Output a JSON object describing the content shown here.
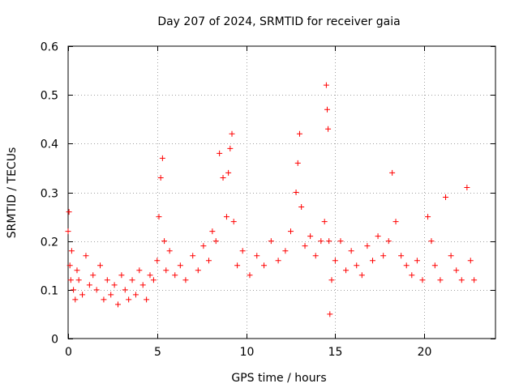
{
  "chart_data": {
    "type": "scatter",
    "title": "Day 207 of 2024, SRMTID for receiver gaia",
    "xlabel": "GPS time / hours",
    "ylabel": "SRMTID / TECUs",
    "xlim": [
      0,
      24
    ],
    "ylim": [
      0,
      0.6
    ],
    "x_ticks": [
      0,
      5,
      10,
      15,
      20
    ],
    "x_tick_labels": [
      "0",
      "5",
      "10",
      "15",
      "20"
    ],
    "y_ticks": [
      0,
      0.1,
      0.2,
      0.3,
      0.4,
      0.5,
      0.6
    ],
    "y_tick_labels": [
      "0",
      "0.1",
      "0.2",
      "0.3",
      "0.4",
      "0.5",
      "0.6"
    ],
    "grid": true,
    "marker": "+",
    "series": [
      {
        "name": "SRMTID",
        "color": "#ff0000",
        "x": [
          0.0,
          0.05,
          0.1,
          0.15,
          0.2,
          0.3,
          0.4,
          0.5,
          0.6,
          0.8,
          1.0,
          1.2,
          1.4,
          1.6,
          1.8,
          2.0,
          2.2,
          2.4,
          2.6,
          2.8,
          3.0,
          3.2,
          3.4,
          3.6,
          3.8,
          4.0,
          4.2,
          4.4,
          4.6,
          4.8,
          5.0,
          5.1,
          5.2,
          5.3,
          5.4,
          5.5,
          5.7,
          6.0,
          6.3,
          6.6,
          7.0,
          7.3,
          7.6,
          7.9,
          8.1,
          8.3,
          8.5,
          8.7,
          8.9,
          9.0,
          9.1,
          9.2,
          9.3,
          9.5,
          9.8,
          10.2,
          10.6,
          11.0,
          11.4,
          11.8,
          12.2,
          12.5,
          12.8,
          12.9,
          13.0,
          13.1,
          13.3,
          13.6,
          13.9,
          14.2,
          14.4,
          14.5,
          14.55,
          14.6,
          14.65,
          14.7,
          14.8,
          15.0,
          15.3,
          15.6,
          15.9,
          16.2,
          16.5,
          16.8,
          17.1,
          17.4,
          17.7,
          18.0,
          18.2,
          18.4,
          18.7,
          19.0,
          19.3,
          19.6,
          19.9,
          20.2,
          20.4,
          20.6,
          20.9,
          21.2,
          21.5,
          21.8,
          22.1,
          22.4,
          22.6,
          22.8
        ],
        "y": [
          0.22,
          0.26,
          0.15,
          0.12,
          0.18,
          0.1,
          0.08,
          0.14,
          0.12,
          0.09,
          0.17,
          0.11,
          0.13,
          0.1,
          0.15,
          0.08,
          0.12,
          0.09,
          0.11,
          0.07,
          0.13,
          0.1,
          0.08,
          0.12,
          0.09,
          0.14,
          0.11,
          0.08,
          0.13,
          0.12,
          0.16,
          0.25,
          0.33,
          0.37,
          0.2,
          0.14,
          0.18,
          0.13,
          0.15,
          0.12,
          0.17,
          0.14,
          0.19,
          0.16,
          0.22,
          0.2,
          0.38,
          0.33,
          0.25,
          0.34,
          0.39,
          0.42,
          0.24,
          0.15,
          0.18,
          0.13,
          0.17,
          0.15,
          0.2,
          0.16,
          0.18,
          0.22,
          0.3,
          0.36,
          0.42,
          0.27,
          0.19,
          0.21,
          0.17,
          0.2,
          0.24,
          0.52,
          0.47,
          0.43,
          0.2,
          0.05,
          0.12,
          0.16,
          0.2,
          0.14,
          0.18,
          0.15,
          0.13,
          0.19,
          0.16,
          0.21,
          0.17,
          0.2,
          0.34,
          0.24,
          0.17,
          0.15,
          0.13,
          0.16,
          0.12,
          0.25,
          0.2,
          0.15,
          0.12,
          0.29,
          0.17,
          0.14,
          0.12,
          0.31,
          0.16,
          0.12
        ]
      }
    ]
  }
}
